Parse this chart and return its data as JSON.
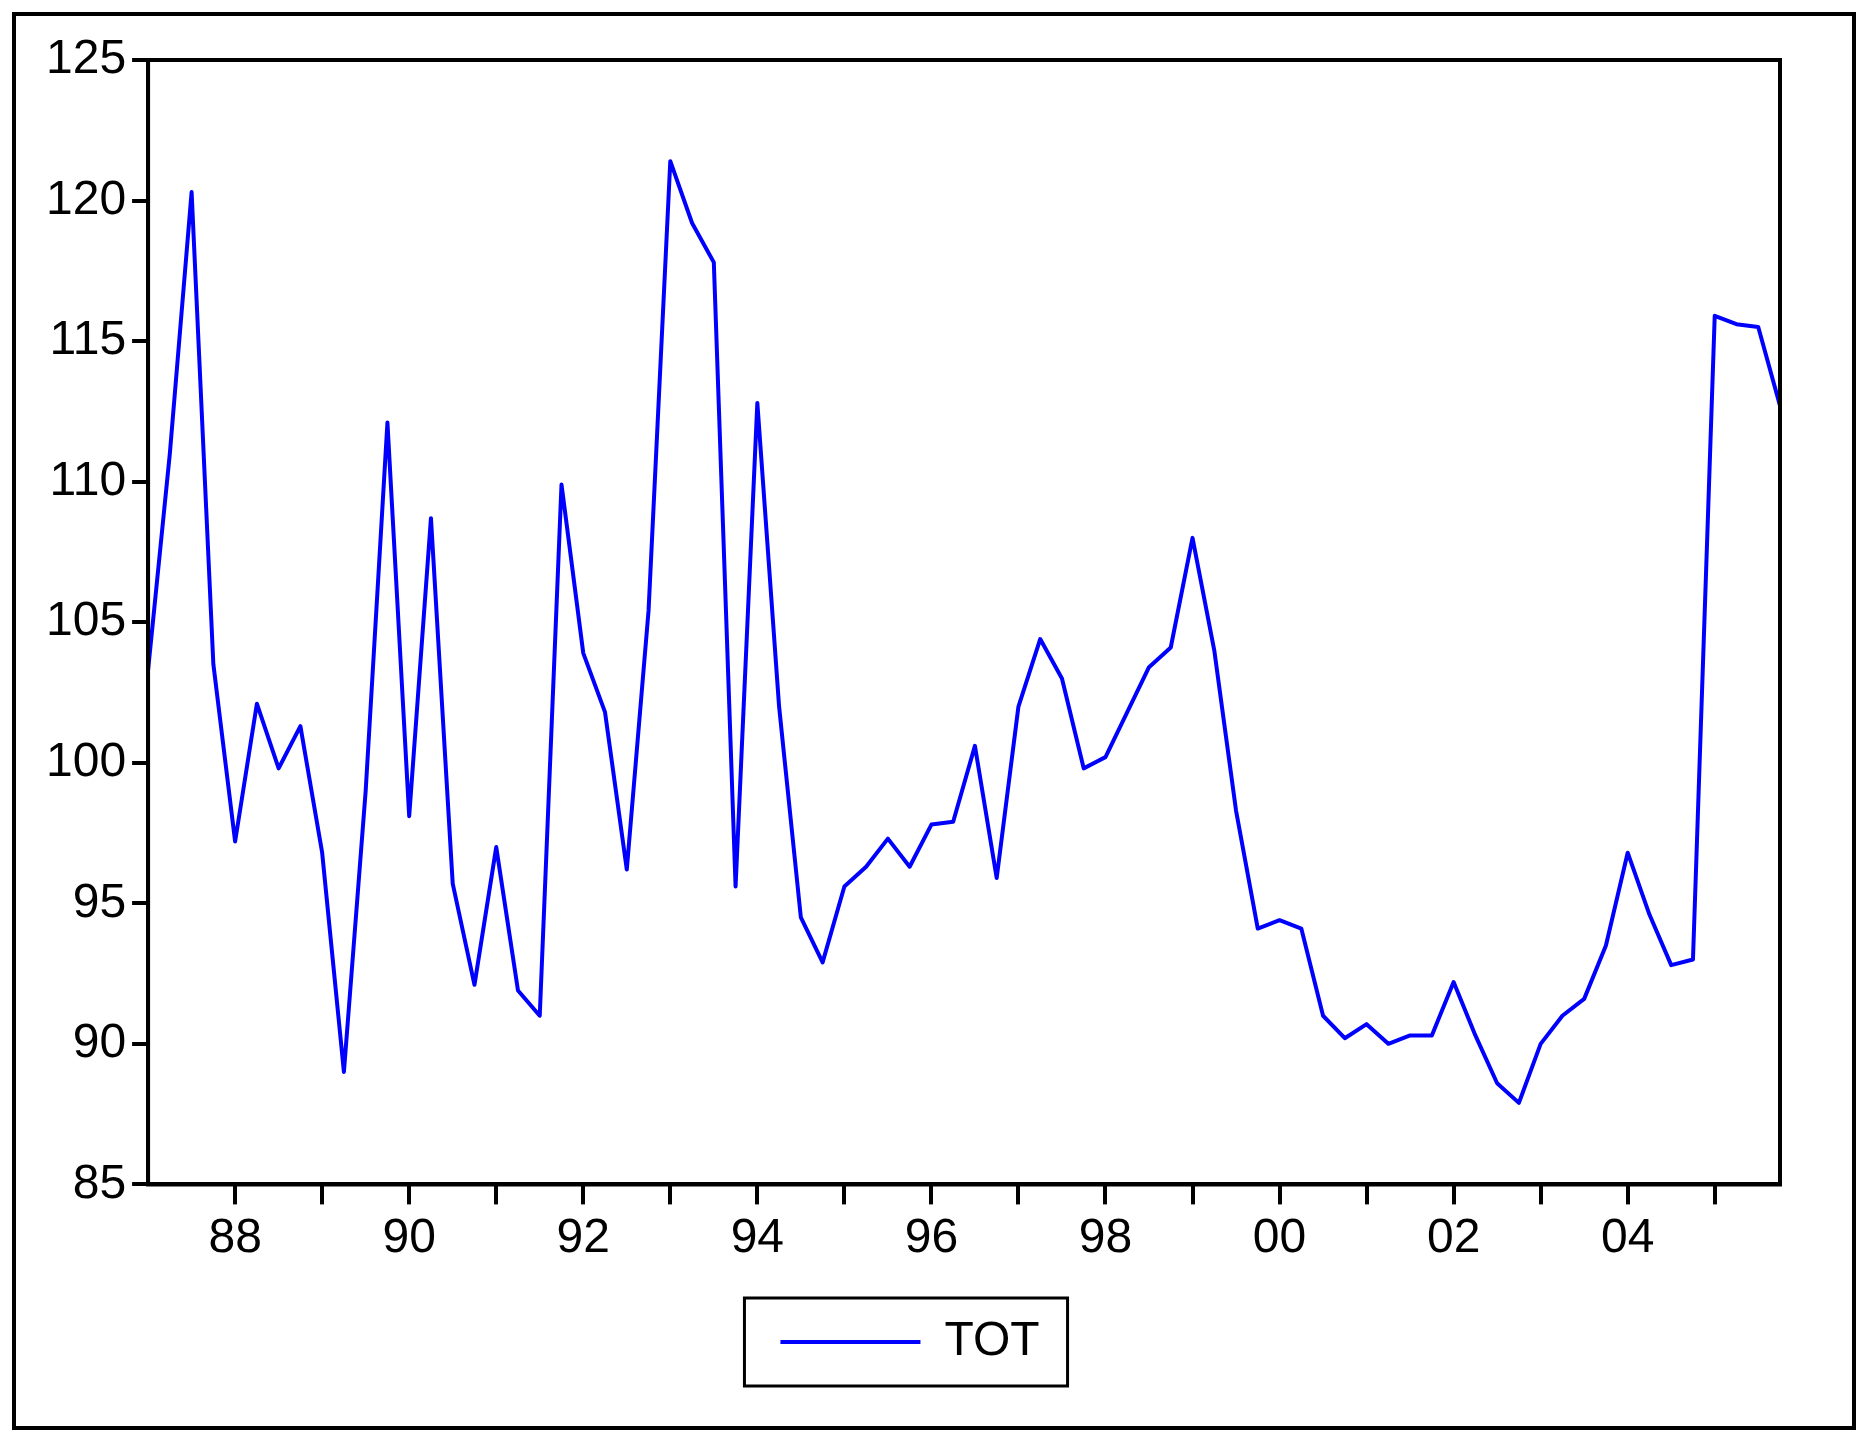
{
  "chart_data": {
    "type": "line",
    "x": [
      1987,
      1987.25,
      1987.5,
      1987.75,
      1988,
      1988.25,
      1988.5,
      1988.75,
      1989,
      1989.25,
      1989.5,
      1989.75,
      1990,
      1990.25,
      1990.5,
      1990.75,
      1991,
      1991.25,
      1991.5,
      1991.75,
      1992,
      1992.25,
      1992.5,
      1992.75,
      1993,
      1993.25,
      1993.5,
      1993.75,
      1994,
      1994.25,
      1994.5,
      1994.75,
      1995,
      1995.25,
      1995.5,
      1995.75,
      1996,
      1996.25,
      1996.5,
      1996.75,
      1997,
      1997.25,
      1997.5,
      1997.75,
      1998,
      1998.25,
      1998.5,
      1998.75,
      1999,
      1999.25,
      1999.5,
      1999.75,
      2000,
      2000.25,
      2000.5,
      2000.75,
      2001,
      2001.25,
      2001.5,
      2001.75,
      2002,
      2002.25,
      2002.5,
      2002.75,
      2003,
      2003.25,
      2003.5,
      2003.75,
      2004,
      2004.25,
      2004.5,
      2004.75,
      2005,
      2005.25,
      2005.5,
      2005.75
    ],
    "series": [
      {
        "name": "TOT",
        "color": "#0000ff",
        "values": [
          103.3,
          111,
          120.3,
          103.5,
          97.2,
          102.1,
          99.8,
          101.3,
          96.8,
          89.0,
          99,
          112.1,
          98.1,
          108.7,
          95.7,
          92.1,
          97.0,
          91.9,
          91.0,
          109.9,
          103.9,
          101.8,
          96.2,
          105.4,
          121.4,
          119.2,
          117.8,
          95.6,
          112.8,
          102,
          94.5,
          92.9,
          95.6,
          96.3,
          97.3,
          96.3,
          97.8,
          97.9,
          100.6,
          95.9,
          102.0,
          104.4,
          103.0,
          99.8,
          100.2,
          101.8,
          103.4,
          104.1,
          108.0,
          104,
          98.3,
          94.1,
          94.4,
          94.1,
          91.0,
          90.2,
          90.7,
          90.0,
          90.3,
          90.3,
          92.2,
          90.3,
          88.6,
          87.9,
          90.0,
          91.0,
          91.6,
          93.5,
          96.8,
          94.6,
          92.8,
          93.0,
          115.9,
          115.6,
          115.5,
          112.7
        ]
      }
    ],
    "xlim": [
      1987,
      2005.75
    ],
    "xticks": [
      {
        "value": 1988,
        "label": "88"
      },
      {
        "value": 1989,
        "label": null
      },
      {
        "value": 1990,
        "label": "90"
      },
      {
        "value": 1991,
        "label": null
      },
      {
        "value": 1992,
        "label": "92"
      },
      {
        "value": 1993,
        "label": null
      },
      {
        "value": 1994,
        "label": "94"
      },
      {
        "value": 1995,
        "label": null
      },
      {
        "value": 1996,
        "label": "96"
      },
      {
        "value": 1997,
        "label": null
      },
      {
        "value": 1998,
        "label": "98"
      },
      {
        "value": 1999,
        "label": null
      },
      {
        "value": 2000,
        "label": "00"
      },
      {
        "value": 2001,
        "label": null
      },
      {
        "value": 2002,
        "label": "02"
      },
      {
        "value": 2003,
        "label": null
      },
      {
        "value": 2004,
        "label": "04"
      },
      {
        "value": 2005,
        "label": null
      }
    ],
    "ylim": [
      85,
      125
    ],
    "yticks": [
      85,
      90,
      95,
      100,
      105,
      110,
      115,
      120,
      125
    ],
    "grid": false,
    "legend": "bottom",
    "marker": "none",
    "line_style": "solid"
  }
}
